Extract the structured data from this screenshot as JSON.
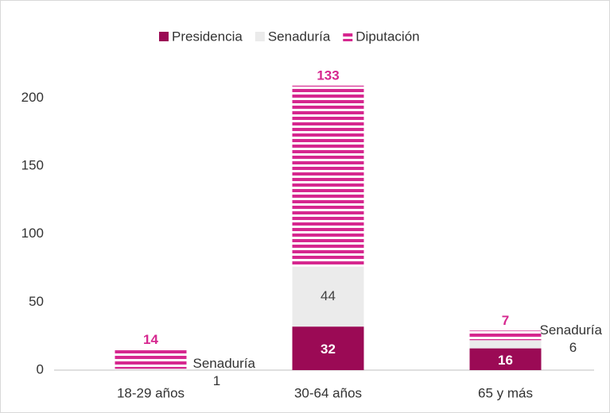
{
  "chart_data": {
    "type": "stacked_bar",
    "categories": [
      "18-29 años",
      "30-64 años",
      "65 y más"
    ],
    "series": [
      {
        "name": "Presidencia",
        "color": "#9b0a55",
        "values": [
          null,
          32,
          16
        ]
      },
      {
        "name": "Senaduría",
        "color": "#ebebeb",
        "values": [
          1,
          44,
          6
        ]
      },
      {
        "name": "Diputación",
        "color": "#d6278f",
        "values": [
          14,
          133,
          7
        ]
      }
    ],
    "ylim": [
      0,
      220
    ],
    "yticks": [
      0,
      50,
      100,
      150,
      200
    ],
    "legend": "top"
  }
}
